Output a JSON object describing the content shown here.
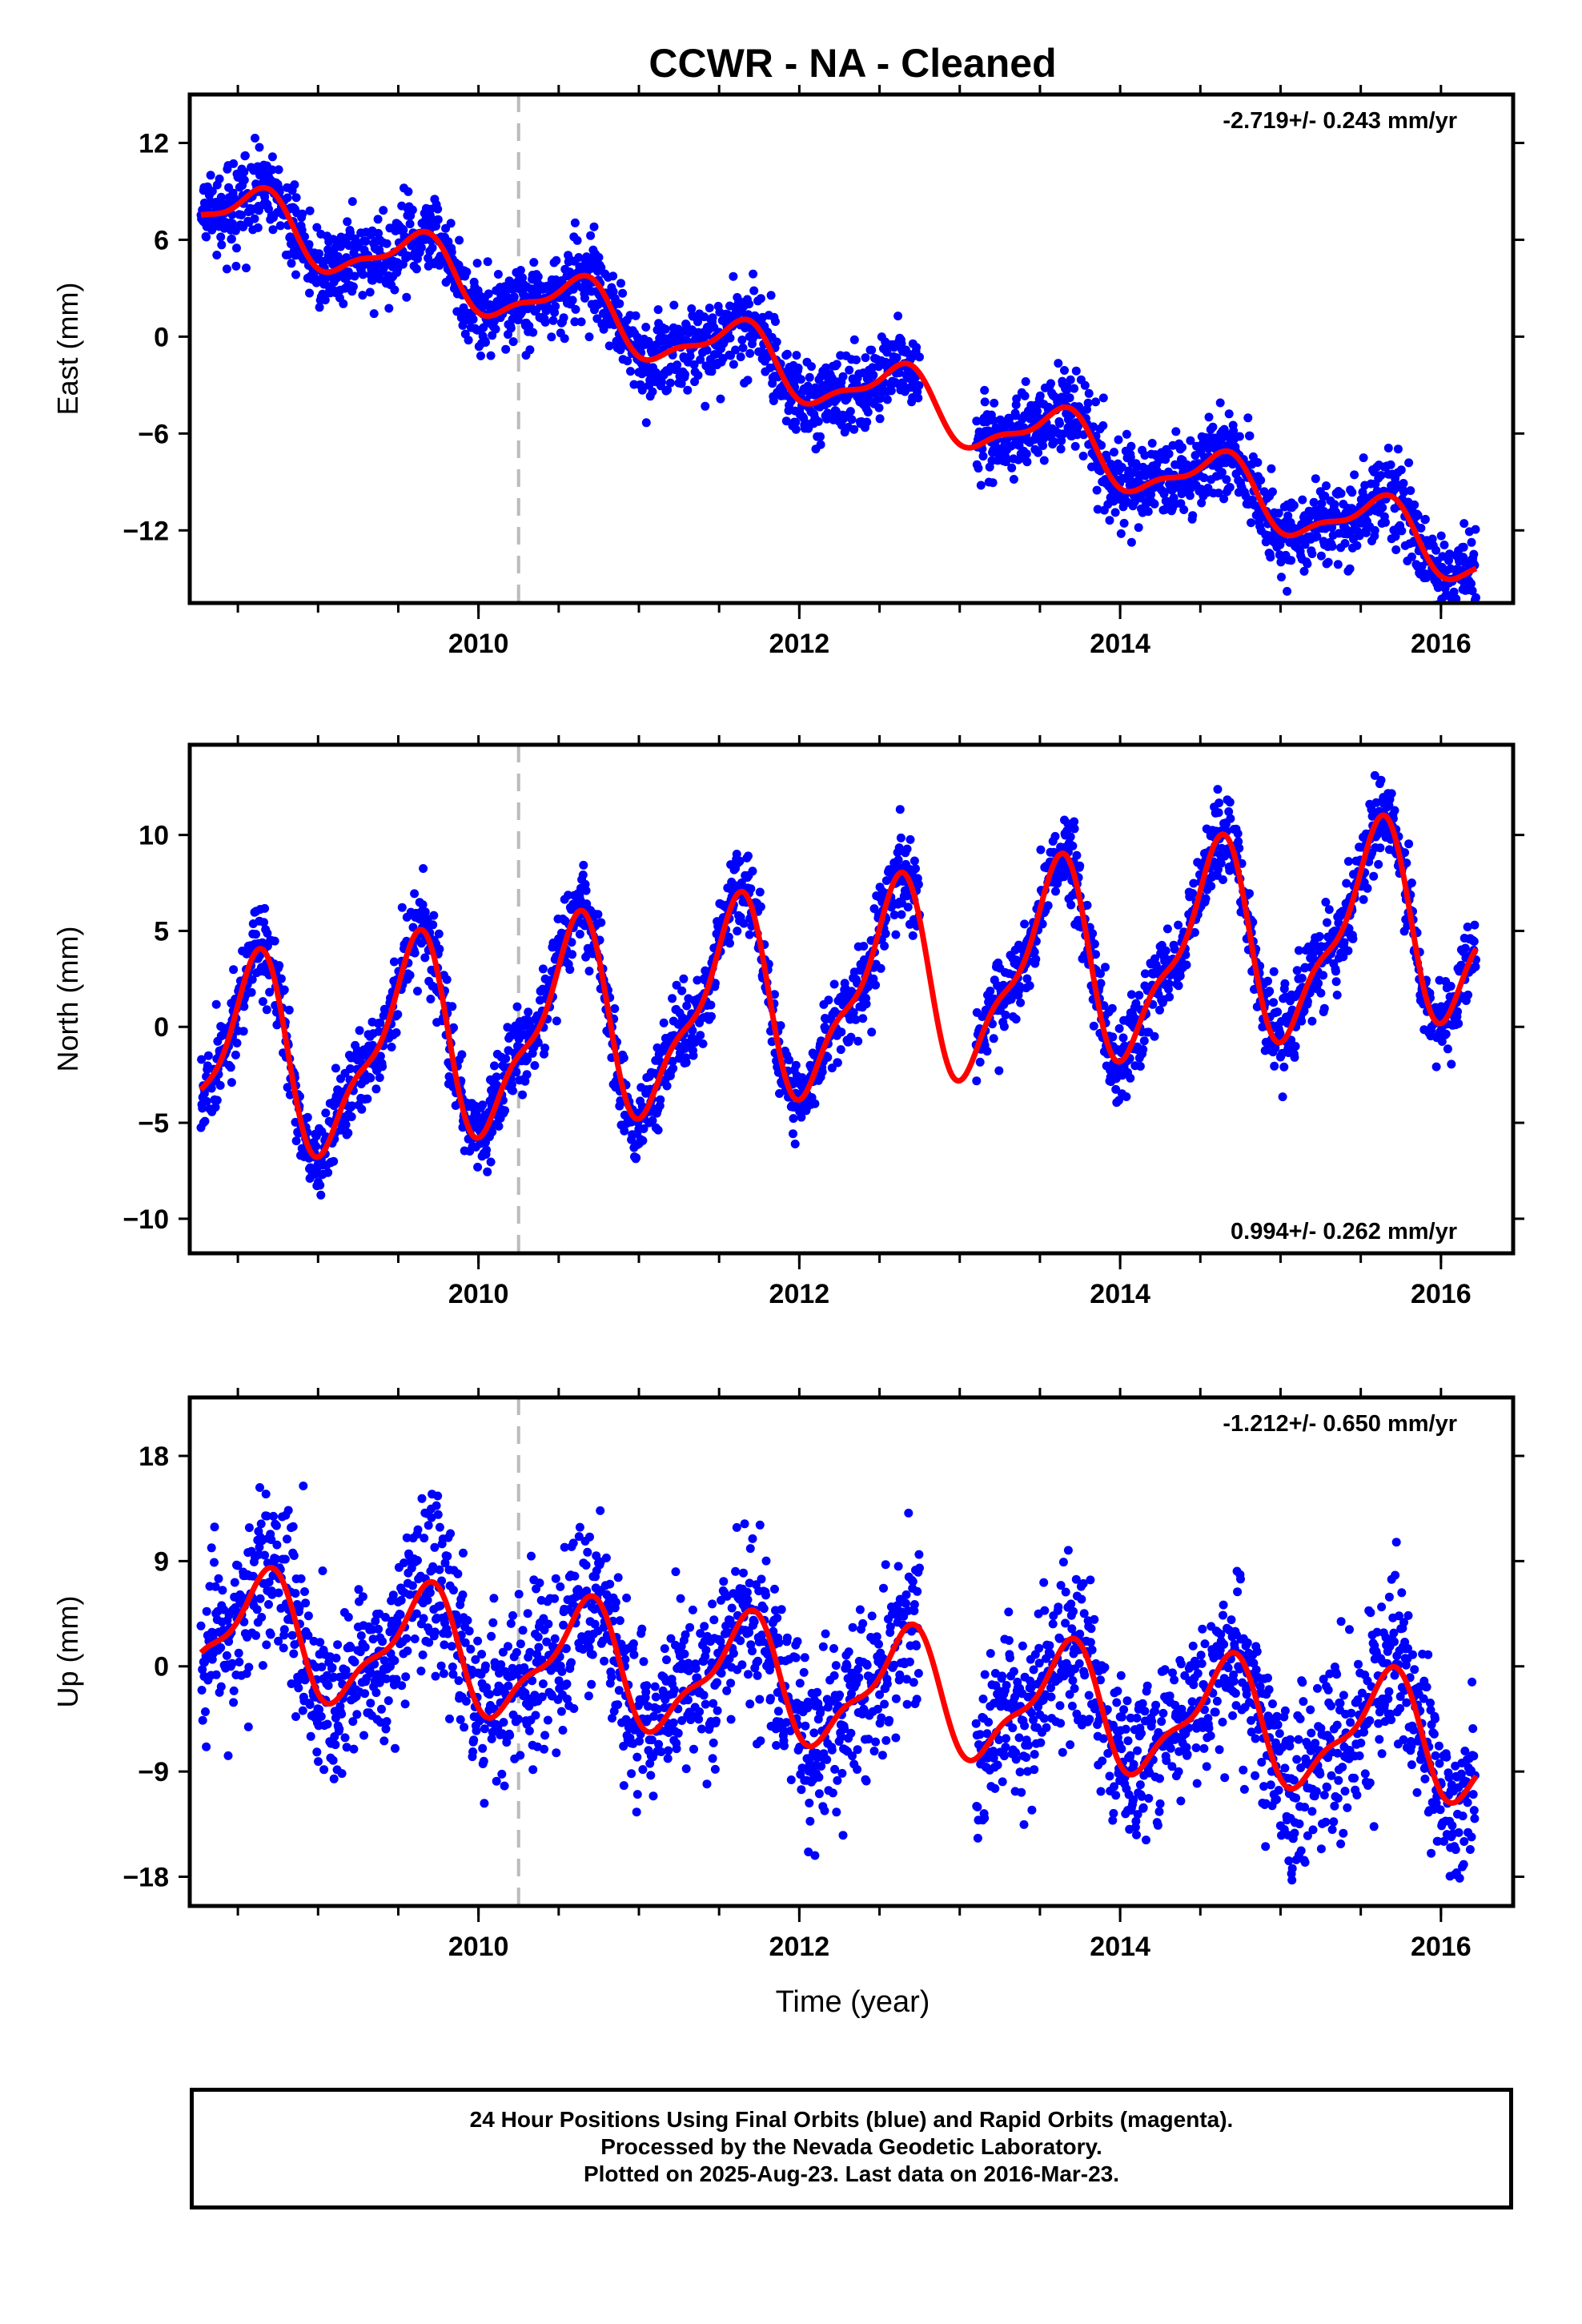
{
  "title": "CCWR  - NA - Cleaned",
  "xlabel": "Time (year)",
  "footer": {
    "line1": "24 Hour Positions Using Final Orbits (blue) and Rapid Orbits (magenta).",
    "line2": "Processed by the Nevada Geodetic Laboratory.",
    "line3": "Plotted on 2025-Aug-23. Last data on 2016-Mar-23."
  },
  "colors": {
    "points": "#0000ff",
    "model": "#ff0000",
    "event_line": "#bbbbbb",
    "frame": "#000000"
  },
  "chart_data": [
    {
      "type": "scatter",
      "component": "East",
      "ylabel": "East (mm)",
      "rate": "-2.719+/- 0.243 mm/yr",
      "rate_position": "top-right",
      "xlim": [
        2008.2,
        2016.45
      ],
      "ylim": [
        -16.5,
        15.0
      ],
      "yticks": [
        12,
        6,
        0,
        -6,
        -12
      ],
      "ytick_labels": [
        "12",
        "6",
        "0",
        "−6",
        "−12"
      ],
      "xticks": [
        2010,
        2012,
        2014,
        2016
      ],
      "xtick_labels": [
        "2010",
        "2012",
        "2014",
        "2016"
      ],
      "event_line_x": 2010.25,
      "data_range": [
        2008.27,
        2016.22
      ],
      "gap": [
        2012.75,
        2013.1
      ],
      "model": {
        "offset": 8.0,
        "rate_mm_yr": -2.719,
        "t0": 2008.3,
        "annual_amp": 1.8,
        "annual_phase": 2008.62
      },
      "noise_mm": 1.25
    },
    {
      "type": "scatter",
      "component": "North",
      "ylabel": "North (mm)",
      "rate": "0.994+/- 0.262 mm/yr",
      "rate_position": "bottom-right",
      "xlim": [
        2008.2,
        2016.45
      ],
      "ylim": [
        -11.8,
        14.7
      ],
      "yticks": [
        10,
        5,
        0,
        -5,
        -10
      ],
      "ytick_labels": [
        "10",
        "5",
        "0",
        "−5",
        "−10"
      ],
      "xticks": [
        2010,
        2012,
        2014,
        2016
      ],
      "xtick_labels": [
        "2010",
        "2012",
        "2014",
        "2016"
      ],
      "event_line_x": 2010.25,
      "data_range": [
        2008.27,
        2016.22
      ],
      "gap": [
        2012.75,
        2013.1
      ],
      "model": {
        "offset": -2.2,
        "rate_mm_yr": 0.994,
        "t0": 2008.3,
        "annual_amp": 4.8,
        "annual_phase": 2008.58
      },
      "noise_mm": 1.1
    },
    {
      "type": "scatter",
      "component": "Up",
      "ylabel": "Up (mm)",
      "rate": "-1.212+/- 0.650 mm/yr",
      "rate_position": "top-right",
      "xlim": [
        2008.2,
        2016.45
      ],
      "ylim": [
        -20.5,
        23.0
      ],
      "yticks": [
        18,
        9,
        0,
        -9,
        -18
      ],
      "ytick_labels": [
        "18",
        "9",
        "0",
        "−9",
        "−18"
      ],
      "xticks": [
        2010,
        2012,
        2014,
        2016
      ],
      "xtick_labels": [
        "2010",
        "2012",
        "2014",
        "2016"
      ],
      "event_line_x": 2010.25,
      "data_range": [
        2008.27,
        2016.22
      ],
      "gap": [
        2012.75,
        2013.1
      ],
      "model": {
        "offset": 3.0,
        "rate_mm_yr": -1.212,
        "t0": 2008.3,
        "annual_amp": 4.8,
        "annual_phase": 2008.65
      },
      "noise_mm": 3.6
    }
  ]
}
